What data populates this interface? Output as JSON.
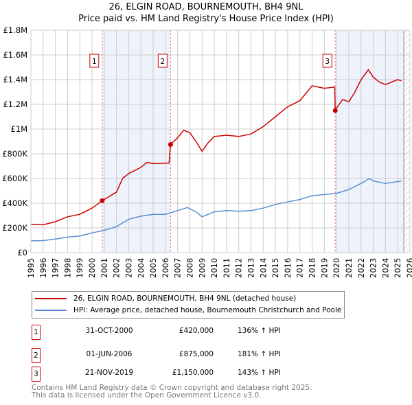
{
  "title": "26, ELGIN ROAD, BOURNEMOUTH, BH4 9NL",
  "subtitle": "Price paid vs. HM Land Registry's House Price Index (HPI)",
  "chart_data": {
    "type": "line",
    "title": "26, ELGIN ROAD, BOURNEMOUTH, BH4 9NL",
    "xlim": [
      1995,
      2026
    ],
    "ylim": [
      0,
      1800000
    ],
    "x_ticks": [
      "1995",
      "1996",
      "1997",
      "1998",
      "1999",
      "2000",
      "2001",
      "2002",
      "2003",
      "2004",
      "2005",
      "2006",
      "2007",
      "2008",
      "2009",
      "2010",
      "2011",
      "2012",
      "2013",
      "2014",
      "2015",
      "2016",
      "2017",
      "2018",
      "2019",
      "2020",
      "2021",
      "2022",
      "2023",
      "2024",
      "2025",
      "2026"
    ],
    "y_ticks": [
      {
        "v": 0,
        "label": "£0"
      },
      {
        "v": 200000,
        "label": "£200K"
      },
      {
        "v": 400000,
        "label": "£400K"
      },
      {
        "v": 600000,
        "label": "£600K"
      },
      {
        "v": 800000,
        "label": "£800K"
      },
      {
        "v": 1000000,
        "label": "£1M"
      },
      {
        "v": 1200000,
        "label": "£1.2M"
      },
      {
        "v": 1400000,
        "label": "£1.4M"
      },
      {
        "v": 1600000,
        "label": "£1.6M"
      },
      {
        "v": 1800000,
        "label": "£1.8M"
      }
    ],
    "shaded_ranges": [
      [
        2000.83,
        2006.42
      ],
      [
        2019.89,
        2025.5
      ]
    ],
    "hatched_from": 2025.5,
    "colors": {
      "property": "#cc0000",
      "hpi": "#5b8dd6",
      "shade": "#eef2fb"
    },
    "series": [
      {
        "name": "26, ELGIN ROAD, BOURNEMOUTH, BH4 9NL (detached house)",
        "points": [
          [
            1995,
            230000
          ],
          [
            1996,
            225000
          ],
          [
            1997,
            250000
          ],
          [
            1998,
            290000
          ],
          [
            1999,
            310000
          ],
          [
            2000,
            360000
          ],
          [
            2000.83,
            420000
          ],
          [
            2001,
            430000
          ],
          [
            2002,
            490000
          ],
          [
            2002.5,
            600000
          ],
          [
            2003,
            640000
          ],
          [
            2004,
            690000
          ],
          [
            2004.5,
            730000
          ],
          [
            2005,
            720000
          ],
          [
            2006.3,
            725000
          ],
          [
            2006.42,
            875000
          ],
          [
            2007,
            930000
          ],
          [
            2007.5,
            990000
          ],
          [
            2008,
            970000
          ],
          [
            2008.5,
            900000
          ],
          [
            2009,
            820000
          ],
          [
            2009.5,
            890000
          ],
          [
            2010,
            940000
          ],
          [
            2011,
            950000
          ],
          [
            2012,
            940000
          ],
          [
            2013,
            960000
          ],
          [
            2014,
            1020000
          ],
          [
            2015,
            1100000
          ],
          [
            2016,
            1180000
          ],
          [
            2017,
            1230000
          ],
          [
            2018,
            1350000
          ],
          [
            2019,
            1330000
          ],
          [
            2019.85,
            1340000
          ],
          [
            2019.89,
            1150000
          ],
          [
            2020,
            1170000
          ],
          [
            2020.5,
            1240000
          ],
          [
            2021,
            1220000
          ],
          [
            2021.5,
            1300000
          ],
          [
            2022,
            1400000
          ],
          [
            2022.6,
            1480000
          ],
          [
            2023,
            1420000
          ],
          [
            2023.5,
            1380000
          ],
          [
            2024,
            1360000
          ],
          [
            2024.5,
            1380000
          ],
          [
            2025,
            1400000
          ],
          [
            2025.3,
            1390000
          ]
        ]
      },
      {
        "name": "HPI: Average price, detached house, Bournemouth Christchurch and Poole",
        "points": [
          [
            1995,
            95000
          ],
          [
            1996,
            97000
          ],
          [
            1997,
            110000
          ],
          [
            1998,
            125000
          ],
          [
            1999,
            135000
          ],
          [
            2000,
            160000
          ],
          [
            2001,
            180000
          ],
          [
            2002,
            210000
          ],
          [
            2003,
            270000
          ],
          [
            2004,
            295000
          ],
          [
            2005,
            310000
          ],
          [
            2006,
            310000
          ],
          [
            2007,
            340000
          ],
          [
            2007.8,
            365000
          ],
          [
            2008.5,
            330000
          ],
          [
            2009,
            290000
          ],
          [
            2009.5,
            310000
          ],
          [
            2010,
            330000
          ],
          [
            2011,
            340000
          ],
          [
            2012,
            335000
          ],
          [
            2013,
            340000
          ],
          [
            2014,
            360000
          ],
          [
            2015,
            390000
          ],
          [
            2016,
            410000
          ],
          [
            2017,
            430000
          ],
          [
            2018,
            460000
          ],
          [
            2019,
            470000
          ],
          [
            2020,
            480000
          ],
          [
            2021,
            510000
          ],
          [
            2022,
            560000
          ],
          [
            2022.7,
            600000
          ],
          [
            2023,
            580000
          ],
          [
            2024,
            560000
          ],
          [
            2025,
            575000
          ],
          [
            2025.3,
            580000
          ]
        ]
      }
    ],
    "sales": [
      {
        "label": "1",
        "x": 2000.83,
        "y": 420000
      },
      {
        "label": "2",
        "x": 2006.42,
        "y": 875000
      },
      {
        "label": "3",
        "x": 2019.89,
        "y": 1150000
      }
    ]
  },
  "legend": {
    "property": "26, ELGIN ROAD, BOURNEMOUTH, BH4 9NL (detached house)",
    "hpi": "HPI: Average price, detached house, Bournemouth Christchurch and Poole"
  },
  "transactions": [
    {
      "num": "1",
      "date": "31-OCT-2000",
      "price": "£420,000",
      "hpi": "136% ↑ HPI"
    },
    {
      "num": "2",
      "date": "01-JUN-2006",
      "price": "£875,000",
      "hpi": "181% ↑ HPI"
    },
    {
      "num": "3",
      "date": "21-NOV-2019",
      "price": "£1,150,000",
      "hpi": "143% ↑ HPI"
    }
  ],
  "footer": {
    "line1": "Contains HM Land Registry data © Crown copyright and database right 2025.",
    "line2": "This data is licensed under the Open Government Licence v3.0."
  }
}
